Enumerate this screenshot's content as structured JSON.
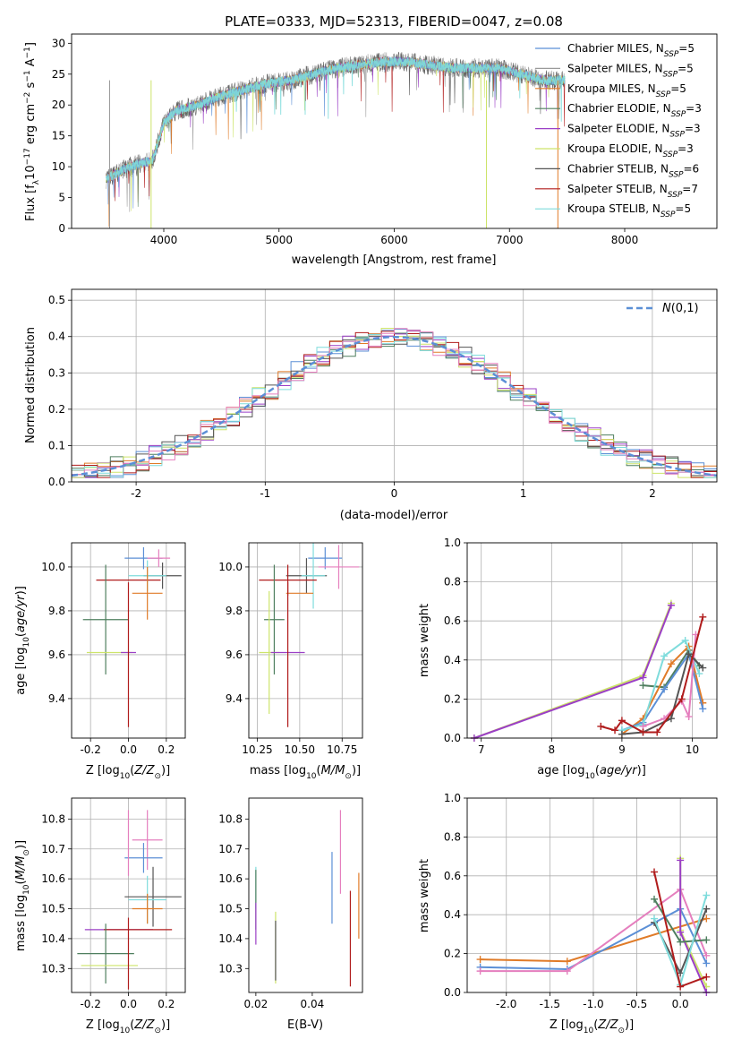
{
  "figure_title": "PLATE=0333, MJD=52313, FIBERID=0047, z=0.08",
  "palette": {
    "Chabrier MILES": "#5b8fd6",
    "Salpeter MILES": "#9a9a9a",
    "Kroupa MILES": "#e07b28",
    "Chabrier ELODIE": "#4f7f5f",
    "Salpeter ELODIE": "#9b3fc6",
    "Kroupa ELODIE": "#cde46a",
    "Chabrier STELIB": "#555555",
    "Salpeter STELIB": "#b01c1c",
    "Kroupa STELIB": "#7fdcdc",
    "Pink": "#e57fbe",
    "Gaussian": "#5b8fd6"
  },
  "chart_data": [
    {
      "type": "line",
      "name": "spectrum",
      "xlabel": "wavelength [Angstrom, rest frame]",
      "ylabel": "Flux [f_λ 10^-17 erg cm^-2 s^-1 A^-1]",
      "xlim": [
        3200,
        8800
      ],
      "ylim": [
        0,
        31.5
      ],
      "xticks": [
        4000,
        5000,
        6000,
        7000,
        8000
      ],
      "yticks": [
        0,
        5,
        10,
        15,
        20,
        25,
        30
      ],
      "grid": false,
      "legend_position": "right",
      "continuum_x": [
        3500,
        3700,
        3900,
        4000,
        4100,
        4300,
        4500,
        4700,
        4900,
        5100,
        5300,
        5500,
        5700,
        5900,
        6100,
        6300,
        6500,
        6700,
        6900,
        7100,
        7300,
        7400
      ],
      "continuum_y": [
        8,
        10,
        11,
        17,
        19,
        20,
        21.5,
        22.5,
        23.5,
        24,
        25,
        26,
        26.5,
        27,
        27,
        26.5,
        26,
        26,
        26,
        25,
        24,
        24
      ],
      "series": [
        {
          "name": "Chabrier MILES, N_SSP=5",
          "color": "#5b8fd6"
        },
        {
          "name": "Salpeter MILES, N_SSP=5",
          "color": "#9a9a9a"
        },
        {
          "name": "Kroupa MILES, N_SSP=5",
          "color": "#e07b28"
        },
        {
          "name": "Chabrier ELODIE, N_SSP=3",
          "color": "#4f7f5f"
        },
        {
          "name": "Salpeter ELODIE, N_SSP=3",
          "color": "#9b3fc6"
        },
        {
          "name": "Kroupa ELODIE, N_SSP=3",
          "color": "#cde46a"
        },
        {
          "name": "Chabrier STELIB, N_SSP=6",
          "color": "#555555"
        },
        {
          "name": "Salpeter STELIB, N_SSP=7",
          "color": "#b01c1c"
        },
        {
          "name": "Kroupa STELIB, N_SSP=5",
          "color": "#7fdcdc"
        }
      ]
    },
    {
      "type": "bar",
      "name": "residuals",
      "xlabel": "(data-model)/error",
      "ylabel": "Normed distribution",
      "xlim": [
        -2.5,
        2.5
      ],
      "ylim": [
        0,
        0.53
      ],
      "xticks": [
        -2,
        -1,
        0,
        1,
        2
      ],
      "yticks": [
        0.0,
        0.1,
        0.2,
        0.3,
        0.4,
        0.5
      ],
      "grid": true,
      "legend_position": "top-right",
      "legend_label": "N(0,1)",
      "bins": 50,
      "hist_colors": [
        "#5b8fd6",
        "#e07b28",
        "#4f7f5f",
        "#9b3fc6",
        "#cde46a",
        "#555555",
        "#b01c1c",
        "#7fdcdc",
        "#e57fbe"
      ]
    },
    {
      "type": "scatter",
      "name": "age-vs-Z",
      "xlabel": "Z [log10(Z/Z_sun)]",
      "ylabel": "age [log10(age/yr)]",
      "xlim": [
        -0.3,
        0.3
      ],
      "ylim": [
        9.22,
        10.11
      ],
      "xticks": [
        -0.2,
        0.0,
        0.2
      ],
      "yticks": [
        9.4,
        9.6,
        9.8,
        10.0
      ],
      "grid": true,
      "points": [
        {
          "color": "#5b8fd6",
          "x": 0.08,
          "y": 10.04,
          "xerr": 0.1,
          "yerr": 0.05
        },
        {
          "color": "#e57fbe",
          "x": 0.16,
          "y": 10.04,
          "xerr": 0.06,
          "yerr": 0.04
        },
        {
          "color": "#555555",
          "x": 0.18,
          "y": 9.96,
          "xerr": 0.1,
          "yerr": 0.06
        },
        {
          "color": "#7fdcdc",
          "x": 0.1,
          "y": 9.96,
          "xerr": 0.1,
          "yerr": 0.07
        },
        {
          "color": "#b01c1c",
          "x": 0.0,
          "y": 9.94,
          "xerr": 0.17,
          "yerr": 0.0
        },
        {
          "color": "#e07b28",
          "x": 0.1,
          "y": 9.88,
          "xerr": 0.08,
          "yerr": 0.12
        },
        {
          "color": "#4f7f5f",
          "x": -0.12,
          "y": 9.76,
          "xerr": 0.12,
          "yerr": 0.25
        },
        {
          "color": "#cde46a",
          "x": -0.1,
          "y": 9.61,
          "xerr": 0.12,
          "yerr": 0.0
        },
        {
          "color": "#9b3fc6",
          "x": 0.0,
          "y": 9.61,
          "xerr": 0.04,
          "yerr": 0.0
        },
        {
          "color": "#b01c1c",
          "x": 0.0,
          "y": 9.6,
          "xerr": 0.0,
          "yerr": 0.33
        }
      ]
    },
    {
      "type": "scatter",
      "name": "age-vs-mass",
      "xlabel": "mass [log10(M/M_sun)]",
      "ylabel": "",
      "xlim": [
        10.2,
        10.87
      ],
      "ylim": [
        9.22,
        10.11
      ],
      "xticks": [
        10.25,
        10.5,
        10.75
      ],
      "yticks": [
        9.4,
        9.6,
        9.8,
        10.0
      ],
      "grid": true,
      "points": [
        {
          "color": "#5b8fd6",
          "x": 10.65,
          "y": 10.04,
          "xerr": 0.1,
          "yerr": 0.05
        },
        {
          "color": "#e57fbe",
          "x": 10.73,
          "y": 10.0,
          "xerr": 0.12,
          "yerr": 0.1
        },
        {
          "color": "#555555",
          "x": 10.54,
          "y": 9.96,
          "xerr": 0.12,
          "yerr": 0.08
        },
        {
          "color": "#7fdcdc",
          "x": 10.58,
          "y": 9.96,
          "xerr": 0.07,
          "yerr": 0.15
        },
        {
          "color": "#b01c1c",
          "x": 10.43,
          "y": 9.94,
          "xerr": 0.17,
          "yerr": 0.07
        },
        {
          "color": "#e07b28",
          "x": 10.5,
          "y": 9.88,
          "xerr": 0.08,
          "yerr": 0.0
        },
        {
          "color": "#4f7f5f",
          "x": 10.35,
          "y": 9.76,
          "xerr": 0.06,
          "yerr": 0.25
        },
        {
          "color": "#cde46a",
          "x": 10.32,
          "y": 9.61,
          "xerr": 0.06,
          "yerr": 0.28
        },
        {
          "color": "#9b3fc6",
          "x": 10.43,
          "y": 9.61,
          "xerr": 0.1,
          "yerr": 0.0
        },
        {
          "color": "#b01c1c",
          "x": 10.43,
          "y": 9.6,
          "xerr": 0.0,
          "yerr": 0.33
        }
      ]
    },
    {
      "type": "line",
      "name": "mass-weight-vs-age",
      "xlabel": "age [log10(age/yr)]",
      "ylabel": "mass weight",
      "xlim": [
        6.8,
        10.35
      ],
      "ylim": [
        0,
        1.0
      ],
      "xticks": [
        7,
        8,
        9,
        10
      ],
      "yticks": [
        0.0,
        0.2,
        0.4,
        0.6,
        0.8,
        1.0
      ],
      "grid": true,
      "series": [
        {
          "color": "#cde46a",
          "x": [
            6.9,
            9.3,
            9.7
          ],
          "y": [
            0.0,
            0.32,
            0.69
          ]
        },
        {
          "color": "#9b3fc6",
          "x": [
            6.9,
            9.3,
            9.7
          ],
          "y": [
            0.0,
            0.31,
            0.68
          ]
        },
        {
          "color": "#4f7f5f",
          "x": [
            9.3,
            9.6,
            9.95,
            10.1
          ],
          "y": [
            0.27,
            0.26,
            0.45,
            0.37
          ]
        },
        {
          "color": "#e07b28",
          "x": [
            9.0,
            9.3,
            9.7,
            9.95,
            10.15
          ],
          "y": [
            0.02,
            0.1,
            0.38,
            0.47,
            0.18
          ]
        },
        {
          "color": "#5b8fd6",
          "x": [
            9.0,
            9.3,
            9.6,
            9.95,
            10.15
          ],
          "y": [
            0.04,
            0.08,
            0.25,
            0.43,
            0.15
          ]
        },
        {
          "color": "#7fdcdc",
          "x": [
            9.0,
            9.3,
            9.6,
            9.9,
            10.1
          ],
          "y": [
            0.04,
            0.07,
            0.42,
            0.5,
            0.33
          ]
        },
        {
          "color": "#e57fbe",
          "x": [
            9.3,
            9.6,
            9.85,
            9.95,
            10.05
          ],
          "y": [
            0.06,
            0.1,
            0.19,
            0.11,
            0.53
          ]
        },
        {
          "color": "#555555",
          "x": [
            9.0,
            9.3,
            9.7,
            9.95,
            10.15
          ],
          "y": [
            0.02,
            0.03,
            0.1,
            0.43,
            0.36
          ]
        },
        {
          "color": "#b01c1c",
          "x": [
            8.7,
            8.9,
            9.0,
            9.3,
            9.5,
            9.85,
            10.15
          ],
          "y": [
            0.06,
            0.04,
            0.09,
            0.03,
            0.03,
            0.2,
            0.62
          ]
        }
      ]
    },
    {
      "type": "scatter",
      "name": "mass-vs-Z",
      "xlabel": "Z [log10(Z/Z_sun)]",
      "ylabel": "mass [log10(M/M_sun)]",
      "xlim": [
        -0.3,
        0.3
      ],
      "ylim": [
        10.22,
        10.87
      ],
      "xticks": [
        -0.2,
        0.0,
        0.2
      ],
      "yticks": [
        10.3,
        10.4,
        10.5,
        10.6,
        10.7,
        10.8
      ],
      "grid": true,
      "points": [
        {
          "color": "#e57fbe",
          "x": 0.1,
          "y": 10.73,
          "xerr": 0.08,
          "yerr": 0.1
        },
        {
          "color": "#5b8fd6",
          "x": 0.08,
          "y": 10.67,
          "xerr": 0.1,
          "yerr": 0.05
        },
        {
          "color": "#555555",
          "x": 0.13,
          "y": 10.54,
          "xerr": 0.15,
          "yerr": 0.1
        },
        {
          "color": "#7fdcdc",
          "x": 0.1,
          "y": 10.53,
          "xerr": 0.1,
          "yerr": 0.08
        },
        {
          "color": "#e07b28",
          "x": 0.1,
          "y": 10.5,
          "xerr": 0.08,
          "yerr": 0.05
        },
        {
          "color": "#9b3fc6",
          "x": -0.05,
          "y": 10.43,
          "xerr": 0.18,
          "yerr": 0.0
        },
        {
          "color": "#b01c1c",
          "x": 0.05,
          "y": 10.43,
          "xerr": 0.18,
          "yerr": 0.0
        },
        {
          "color": "#4f7f5f",
          "x": -0.12,
          "y": 10.35,
          "xerr": 0.15,
          "yerr": 0.1
        },
        {
          "color": "#cde46a",
          "x": -0.1,
          "y": 10.31,
          "xerr": 0.15,
          "yerr": 0.0
        },
        {
          "color": "#b01c1c",
          "x": 0.0,
          "y": 10.35,
          "xerr": 0.0,
          "yerr": 0.12
        },
        {
          "color": "#e57fbe",
          "x": 0.0,
          "y": 10.72,
          "xerr": 0.0,
          "yerr": 0.11
        }
      ]
    },
    {
      "type": "scatter",
      "name": "mass-vs-EBV",
      "xlabel": "E(B-V)",
      "ylabel": "",
      "xlim": [
        0.0175,
        0.0578
      ],
      "ylim": [
        10.22,
        10.87
      ],
      "xticks": [
        0.02,
        0.04
      ],
      "yticks": [
        10.3,
        10.4,
        10.5,
        10.6,
        10.7,
        10.8
      ],
      "grid": false,
      "points": [
        {
          "color": "#7fdcdc",
          "x": 0.02,
          "y": 10.57,
          "xerr": 0.0,
          "yerr": 0.07
        },
        {
          "color": "#4f7f5f",
          "x": 0.02,
          "y": 10.53,
          "xerr": 0.0,
          "yerr": 0.1
        },
        {
          "color": "#9b3fc6",
          "x": 0.02,
          "y": 10.45,
          "xerr": 0.0,
          "yerr": 0.07
        },
        {
          "color": "#cde46a",
          "x": 0.027,
          "y": 10.37,
          "xerr": 0.0,
          "yerr": 0.12
        },
        {
          "color": "#555555",
          "x": 0.027,
          "y": 10.36,
          "xerr": 0.0,
          "yerr": 0.1
        },
        {
          "color": "#5b8fd6",
          "x": 0.047,
          "y": 10.57,
          "xerr": 0.0,
          "yerr": 0.12
        },
        {
          "color": "#e57fbe",
          "x": 0.05,
          "y": 10.69,
          "xerr": 0.0,
          "yerr": 0.14
        },
        {
          "color": "#b01c1c",
          "x": 0.0535,
          "y": 10.4,
          "xerr": 0.0,
          "yerr": 0.16
        },
        {
          "color": "#e07b28",
          "x": 0.0565,
          "y": 10.51,
          "xerr": 0.0,
          "yerr": 0.11
        }
      ]
    },
    {
      "type": "line",
      "name": "mass-weight-vs-Z",
      "xlabel": "Z [log10(Z/Z_sun)]",
      "ylabel": "mass weight",
      "xlim": [
        -2.45,
        0.42
      ],
      "ylim": [
        0,
        1.0
      ],
      "xticks": [
        -2.0,
        -1.5,
        -1.0,
        -0.5,
        0.0
      ],
      "yticks": [
        0.0,
        0.2,
        0.4,
        0.6,
        0.8,
        1.0
      ],
      "grid": true,
      "series": [
        {
          "color": "#e07b28",
          "x": [
            -2.3,
            -1.3,
            0.3
          ],
          "y": [
            0.17,
            0.16,
            0.38
          ]
        },
        {
          "color": "#5b8fd6",
          "x": [
            -2.3,
            -1.3,
            0.0,
            0.3
          ],
          "y": [
            0.13,
            0.12,
            0.43,
            0.15
          ]
        },
        {
          "color": "#e57fbe",
          "x": [
            -2.3,
            -1.3,
            0.0,
            0.3
          ],
          "y": [
            0.11,
            0.11,
            0.53,
            0.19
          ]
        },
        {
          "color": "#cde46a",
          "x": [
            0.0,
            0.0,
            0.3
          ],
          "y": [
            0.69,
            0.32,
            0.03
          ]
        },
        {
          "color": "#9b3fc6",
          "x": [
            0.0,
            0.0,
            0.3
          ],
          "y": [
            0.68,
            0.31,
            0.0
          ]
        },
        {
          "color": "#4f7f5f",
          "x": [
            -0.3,
            0.0,
            0.3
          ],
          "y": [
            0.48,
            0.26,
            0.27
          ]
        },
        {
          "color": "#555555",
          "x": [
            -0.3,
            0.0,
            0.3
          ],
          "y": [
            0.36,
            0.1,
            0.43
          ]
        },
        {
          "color": "#7fdcdc",
          "x": [
            -0.3,
            0.0,
            0.3
          ],
          "y": [
            0.38,
            0.04,
            0.5
          ]
        },
        {
          "color": "#b01c1c",
          "x": [
            -0.3,
            0.0,
            0.3
          ],
          "y": [
            0.62,
            0.03,
            0.08
          ]
        }
      ]
    }
  ]
}
